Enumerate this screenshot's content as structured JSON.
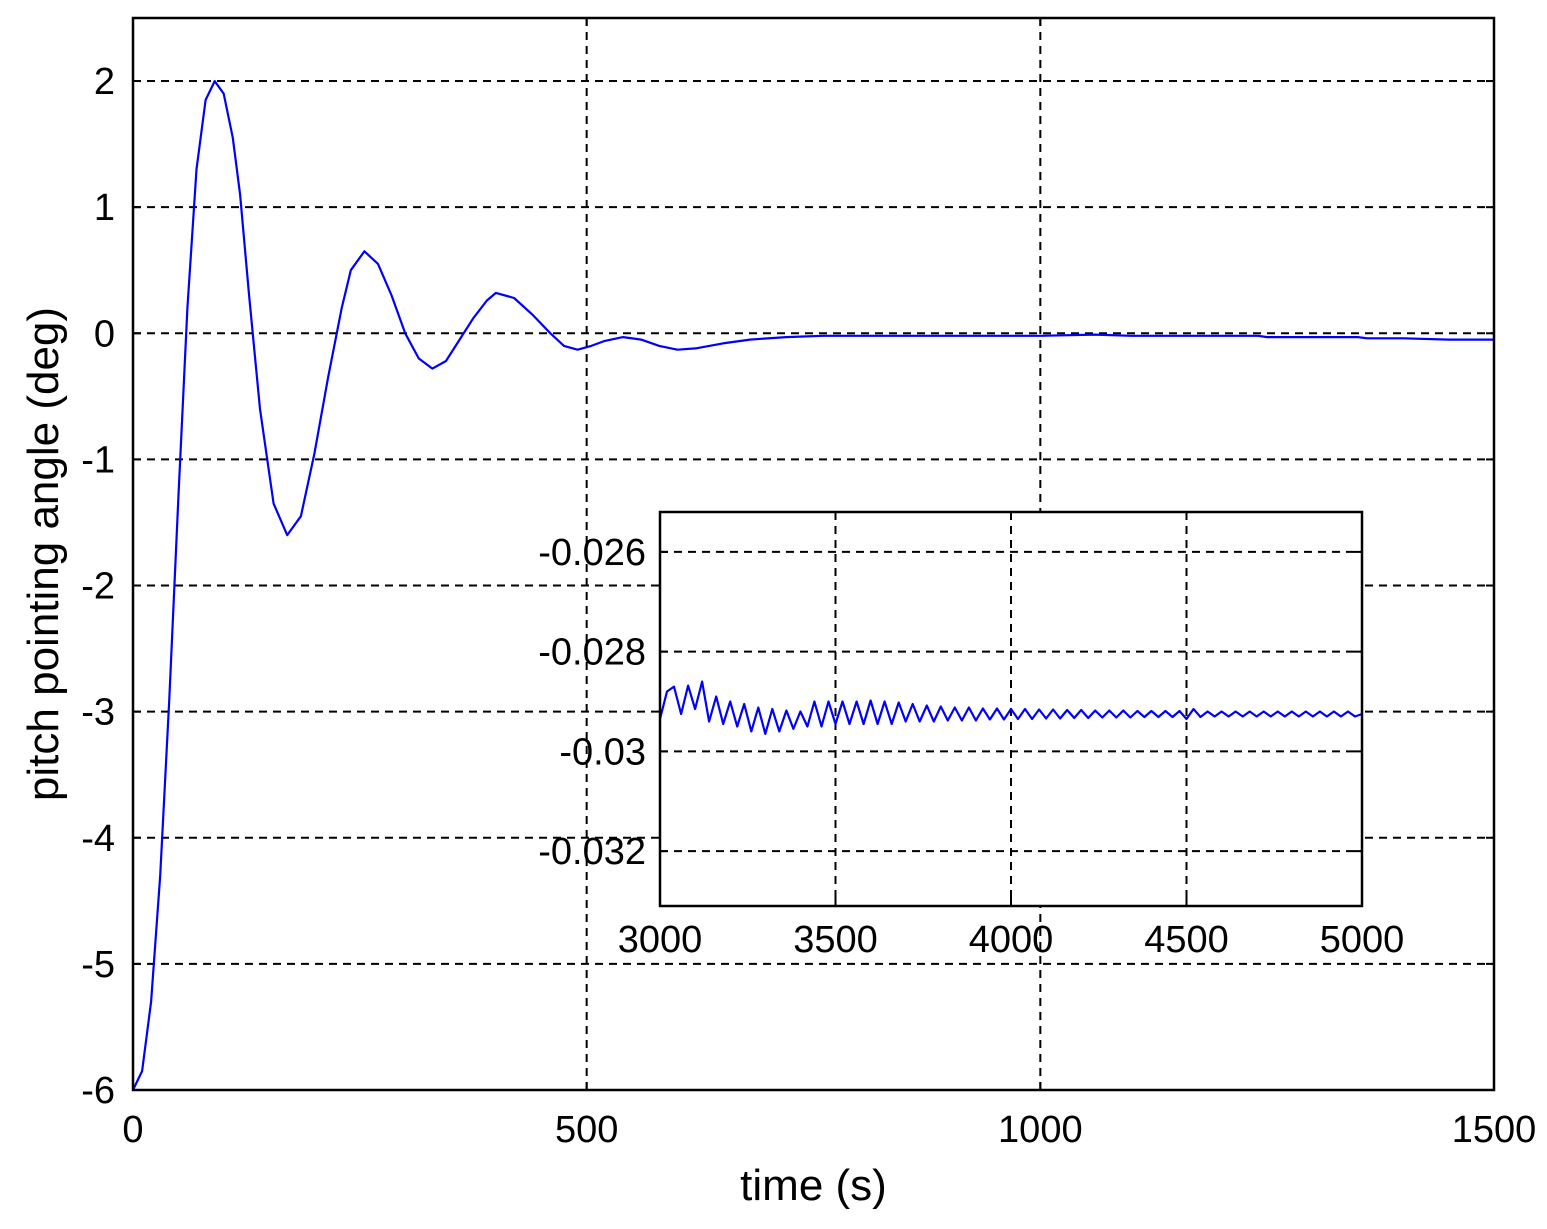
{
  "chart_data": [
    {
      "type": "line",
      "xlabel": "time (s)",
      "ylabel": "pitch pointing angle (deg)",
      "xlim": [
        0,
        1500
      ],
      "ylim": [
        -6,
        2.5
      ],
      "xticks": [
        0,
        500,
        1000,
        1500
      ],
      "xtick_labels": [
        "0",
        "500",
        "1000",
        "1500"
      ],
      "yticks": [
        2,
        1,
        0,
        -1,
        -2,
        -3,
        -4,
        -5,
        -6
      ],
      "ytick_labels": [
        "2",
        "1",
        "0",
        "-1",
        "-2",
        "-3",
        "-4",
        "-5",
        "-6"
      ],
      "grid": true,
      "series_color": "#0000ff",
      "series": [
        {
          "x": [
            0,
            10,
            20,
            30,
            40,
            50,
            60,
            70,
            80,
            90,
            100,
            110,
            118,
            128,
            140,
            155,
            170,
            185,
            200,
            215,
            230,
            240,
            255,
            270,
            285,
            300,
            315,
            330,
            345,
            360,
            375,
            390,
            400,
            420,
            440,
            460,
            475,
            490,
            505,
            520,
            540,
            560,
            580,
            600,
            620,
            650,
            680,
            720,
            760,
            800,
            840,
            880,
            920,
            960,
            1000,
            1060,
            1100,
            1150,
            1200,
            1240,
            1250,
            1300,
            1350,
            1360,
            1400,
            1450,
            1500
          ],
          "y": [
            -6.0,
            -5.85,
            -5.3,
            -4.3,
            -2.9,
            -1.3,
            0.2,
            1.3,
            1.85,
            2.0,
            1.9,
            1.55,
            1.1,
            0.3,
            -0.6,
            -1.35,
            -1.6,
            -1.45,
            -0.95,
            -0.35,
            0.2,
            0.5,
            0.65,
            0.55,
            0.3,
            0.0,
            -0.2,
            -0.28,
            -0.22,
            -0.05,
            0.12,
            0.26,
            0.32,
            0.28,
            0.15,
            0.0,
            -0.1,
            -0.13,
            -0.1,
            -0.06,
            -0.03,
            -0.05,
            -0.1,
            -0.13,
            -0.12,
            -0.08,
            -0.05,
            -0.03,
            -0.02,
            -0.02,
            -0.02,
            -0.02,
            -0.02,
            -0.02,
            -0.02,
            -0.01,
            -0.02,
            -0.02,
            -0.02,
            -0.02,
            -0.03,
            -0.03,
            -0.03,
            -0.04,
            -0.04,
            -0.05,
            -0.05
          ]
        }
      ]
    },
    {
      "type": "line",
      "xlim": [
        3000,
        5000
      ],
      "ylim": [
        -0.0331,
        -0.0252
      ],
      "xticks": [
        3000,
        3500,
        4000,
        4500,
        5000
      ],
      "xtick_labels": [
        "3000",
        "3500",
        "4000",
        "4500",
        "5000"
      ],
      "yticks": [
        -0.026,
        -0.028,
        -0.03,
        -0.032
      ],
      "ytick_labels": [
        "-0.026",
        "-0.028",
        "-0.03",
        "-0.032"
      ],
      "grid": true,
      "series_color": "#0000ff",
      "series": [
        {
          "x": [
            3000,
            3020,
            3040,
            3060,
            3080,
            3100,
            3120,
            3140,
            3160,
            3180,
            3200,
            3220,
            3240,
            3260,
            3280,
            3300,
            3320,
            3340,
            3360,
            3380,
            3400,
            3420,
            3440,
            3460,
            3480,
            3500,
            3520,
            3540,
            3560,
            3580,
            3600,
            3620,
            3640,
            3660,
            3680,
            3700,
            3720,
            3740,
            3760,
            3780,
            3800,
            3820,
            3840,
            3860,
            3880,
            3900,
            3920,
            3940,
            3960,
            3980,
            4000,
            4020,
            4040,
            4060,
            4080,
            4100,
            4120,
            4140,
            4160,
            4180,
            4200,
            4220,
            4240,
            4260,
            4280,
            4300,
            4320,
            4340,
            4360,
            4380,
            4400,
            4420,
            4440,
            4460,
            4480,
            4500,
            4520,
            4540,
            4560,
            4580,
            4600,
            4620,
            4640,
            4660,
            4680,
            4700,
            4720,
            4740,
            4760,
            4780,
            4800,
            4820,
            4840,
            4860,
            4880,
            4900,
            4920,
            4940,
            4960,
            4980,
            5000
          ],
          "y": [
            -0.02935,
            -0.0288,
            -0.0287,
            -0.02925,
            -0.02868,
            -0.02915,
            -0.0286,
            -0.0294,
            -0.0289,
            -0.02945,
            -0.029,
            -0.0295,
            -0.02905,
            -0.0296,
            -0.02912,
            -0.02965,
            -0.02915,
            -0.0296,
            -0.02918,
            -0.02955,
            -0.0292,
            -0.0295,
            -0.029,
            -0.0295,
            -0.029,
            -0.02945,
            -0.029,
            -0.02945,
            -0.029,
            -0.02945,
            -0.02898,
            -0.02945,
            -0.029,
            -0.02945,
            -0.02902,
            -0.0294,
            -0.02905,
            -0.0294,
            -0.02908,
            -0.0294,
            -0.0291,
            -0.02938,
            -0.02912,
            -0.02938,
            -0.02912,
            -0.02938,
            -0.02914,
            -0.02936,
            -0.02914,
            -0.02936,
            -0.02915,
            -0.02935,
            -0.02915,
            -0.02935,
            -0.02916,
            -0.02934,
            -0.02916,
            -0.02934,
            -0.02917,
            -0.02933,
            -0.02917,
            -0.02933,
            -0.02918,
            -0.02932,
            -0.02918,
            -0.02932,
            -0.02918,
            -0.02932,
            -0.02919,
            -0.02931,
            -0.02919,
            -0.02931,
            -0.02919,
            -0.02931,
            -0.02919,
            -0.02935,
            -0.02915,
            -0.02931,
            -0.0292,
            -0.0293,
            -0.0292,
            -0.0293,
            -0.0292,
            -0.0293,
            -0.0292,
            -0.0293,
            -0.0292,
            -0.0293,
            -0.0292,
            -0.0293,
            -0.0292,
            -0.0293,
            -0.0292,
            -0.0293,
            -0.0292,
            -0.0293,
            -0.0292,
            -0.0293,
            -0.0292,
            -0.0293,
            -0.02925
          ]
        }
      ]
    }
  ]
}
